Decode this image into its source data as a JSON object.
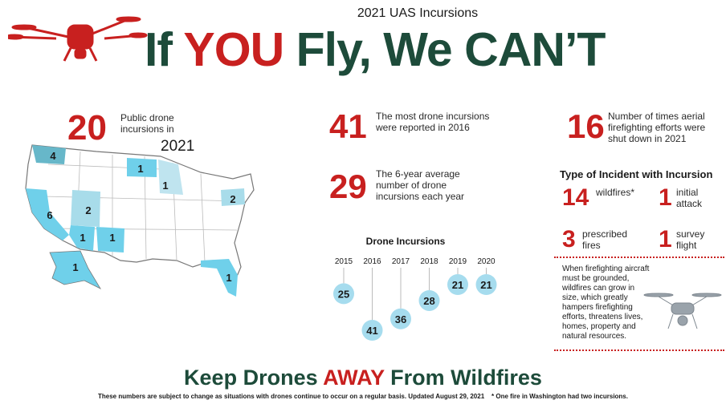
{
  "header": {
    "subtitle": "2021 UAS Incursions",
    "title": {
      "before": "If",
      "highlight": "YOU",
      "after": "Fly, We CAN’T"
    }
  },
  "map": {
    "stat": {
      "number": "20",
      "text": "Public drone incursions in",
      "year": "2021"
    },
    "counts": [
      "4",
      "1",
      "1",
      "2",
      "6",
      "2",
      "1",
      "1",
      "1",
      "1"
    ]
  },
  "stats": [
    {
      "number": "41",
      "text": "The most drone incursions were reported in 2016"
    },
    {
      "number": "29",
      "text": "The 6-year average number of drone incursions each year"
    },
    {
      "number": "16",
      "text": "Number of times aerial firefighting efforts were shut down in 2021"
    }
  ],
  "incidents": {
    "title": "Type of Incident with Incursion",
    "items": [
      {
        "number": "14",
        "label": "wildfires*"
      },
      {
        "number": "1",
        "label": "initial attack"
      },
      {
        "number": "3",
        "label": "prescribed fires"
      },
      {
        "number": "1",
        "label": "survey flight"
      }
    ]
  },
  "note": "When firefighting aircraft must be grounded, wildfires can grow in size, which greatly hampers firefighting efforts, threatens lives, homes, property and natural resources.",
  "chart_data": {
    "type": "dot",
    "title": "Drone Incursions",
    "categories": [
      "2015",
      "2016",
      "2017",
      "2018",
      "2019",
      "2020"
    ],
    "values": [
      25,
      41,
      36,
      28,
      21,
      21
    ],
    "color": "#a6dcee"
  },
  "footer": {
    "title": {
      "before": "Keep Drones",
      "highlight": "AWAY",
      "after": "From Wildfires"
    },
    "notes": [
      "These numbers are subject to change as situations with drones continue to occur on a regular basis. Updated August 29, 2021",
      "* One fire in Washington had two incursions."
    ]
  }
}
